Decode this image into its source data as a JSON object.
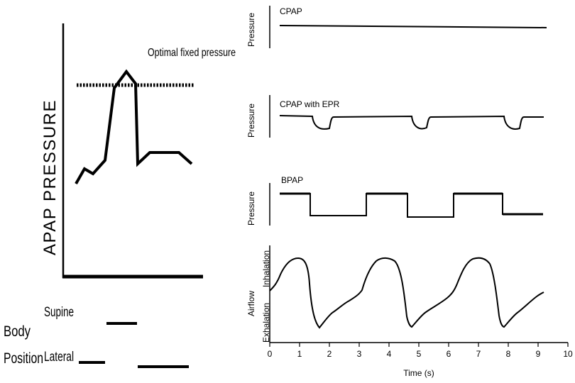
{
  "left_panel": {
    "y_axis_label": "APAP PRESSURE",
    "optimal_label": "Optimal fixed pressure",
    "body_label_1": "Body",
    "body_label_2": "Position",
    "supine_label": "Supine",
    "lateral_label": "Lateral"
  },
  "right_panel": {
    "cpap": {
      "title": "CPAP",
      "ylabel": "Pressure"
    },
    "epr": {
      "title": "CPAP with EPR",
      "ylabel": "Pressure"
    },
    "bpap": {
      "title": "BPAP",
      "ylabel": "Pressure"
    },
    "airflow": {
      "ylabel": "Airflow",
      "inhalation": "Inhalation",
      "exhalation": "Exhalation"
    },
    "xaxis": {
      "label": "Time (s)",
      "ticks": [
        "0",
        "1",
        "2",
        "3",
        "4",
        "5",
        "6",
        "7",
        "8",
        "9",
        "10"
      ]
    }
  },
  "chart_data": {
    "type": "line",
    "xlabel": "Time (s)",
    "xlim": [
      0,
      10
    ],
    "x_ticks": [
      0,
      1,
      2,
      3,
      4,
      5,
      6,
      7,
      8,
      9,
      10
    ],
    "bpap_high_intervals_s": [
      [
        0.35,
        1.4
      ],
      [
        3.3,
        4.7
      ],
      [
        6.2,
        7.8
      ]
    ],
    "epr_dip_centers_s": [
      1.75,
      5.1,
      8.2
    ],
    "airflow_peak_times_s": [
      1.1,
      4.1,
      7.1
    ],
    "airflow_trough_times_s": [
      1.8,
      4.8,
      7.8
    ]
  }
}
